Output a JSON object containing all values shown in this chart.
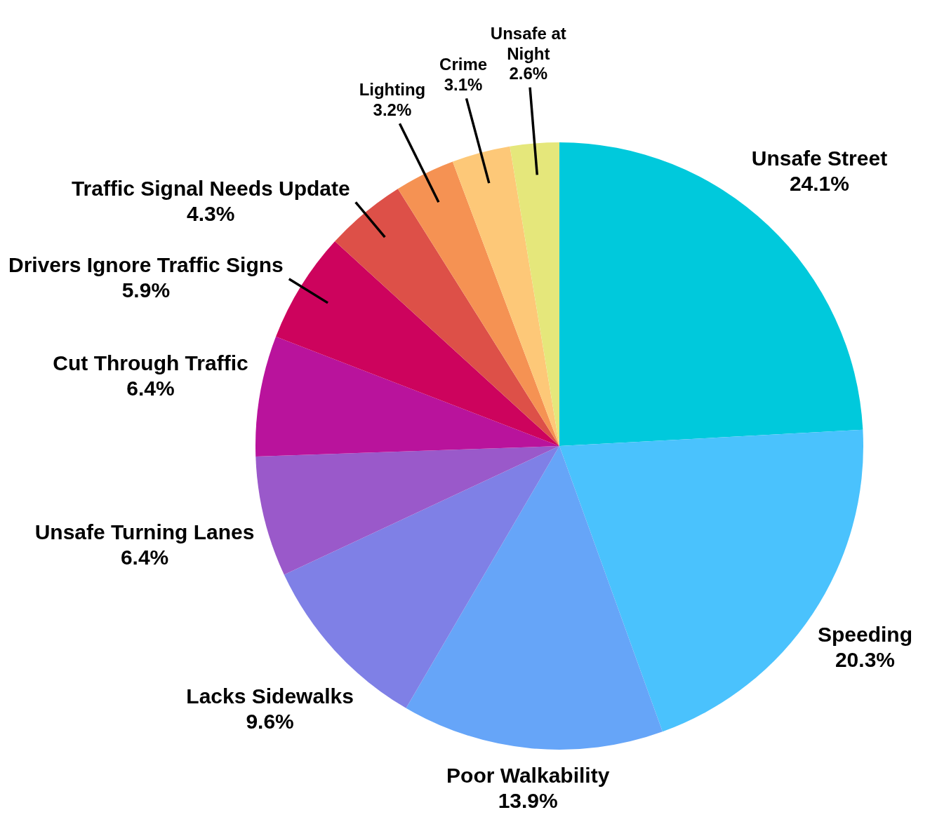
{
  "chart_data": {
    "type": "pie",
    "categories": [
      "Unsafe Street",
      "Speeding",
      "Poor Walkability",
      "Lacks Sidewalks",
      "Unsafe Turning Lanes",
      "Cut Through Traffic",
      "Drivers Ignore Traffic Signs",
      "Traffic Signal Needs Update",
      "Lighting",
      "Crime",
      "Unsafe at Night"
    ],
    "values": [
      24.1,
      20.3,
      13.9,
      9.6,
      6.4,
      6.4,
      5.9,
      4.3,
      3.2,
      3.1,
      2.6
    ],
    "colors": [
      "#00c9dc",
      "#4ac2fd",
      "#66a5f8",
      "#7f80e6",
      "#9a59ca",
      "#b9139c",
      "#cd035d",
      "#dd5048",
      "#f59253",
      "#fdc878",
      "#e5e77b"
    ],
    "value_labels": [
      "24.1%",
      "20.3%",
      "13.9%",
      "9.6%",
      "6.4%",
      "6.4%",
      "5.9%",
      "4.3%",
      "3.2%",
      "3.1%",
      "2.6%"
    ]
  }
}
